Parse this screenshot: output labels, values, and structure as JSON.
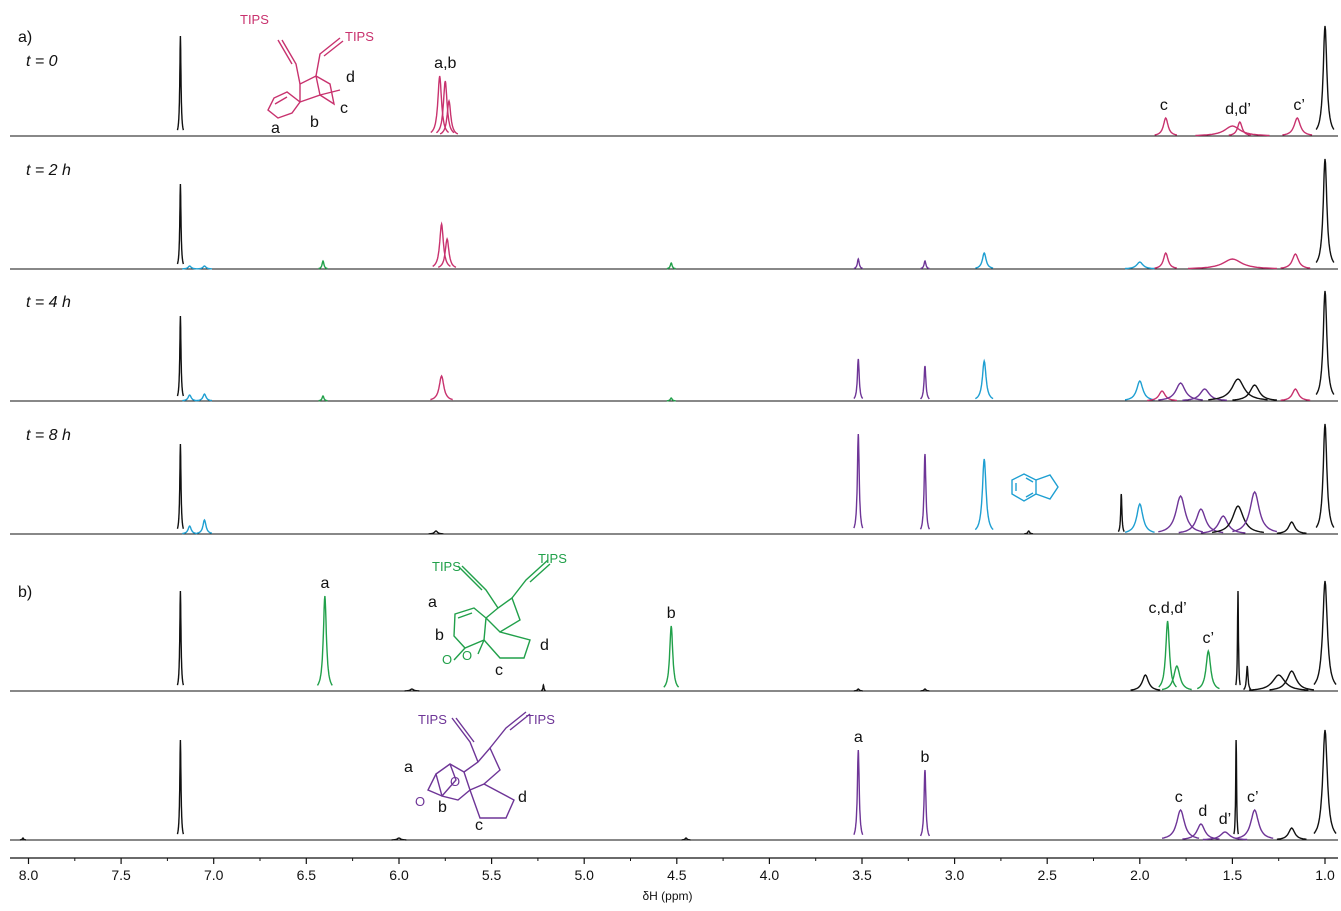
{
  "colors": {
    "black": "#111111",
    "magenta": "#c8326e",
    "cyan": "#1e9fd2",
    "green": "#21a04a",
    "purple": "#6e3597"
  },
  "chart_data": {
    "type": "line",
    "xlim": [
      8.1,
      0.93
    ],
    "xticks": [
      "8.0",
      "7.5",
      "7.0",
      "6.5",
      "6.0",
      "5.5",
      "5.0",
      "4.5",
      "4.0",
      "3.5",
      "3.0",
      "2.5",
      "2.0",
      "1.5",
      "1.0"
    ],
    "xlabel": "δH (ppm)",
    "panel_labels": [
      "a)",
      "b)"
    ],
    "traces": [
      {
        "label": "t = 0",
        "peaks": [
          {
            "ppm": 7.18,
            "h": 1.0,
            "w": 0.004,
            "c": "black"
          },
          {
            "ppm": 5.78,
            "h": 0.6,
            "w": 0.012,
            "c": "magenta"
          },
          {
            "ppm": 5.75,
            "h": 0.55,
            "w": 0.012,
            "c": "magenta"
          },
          {
            "ppm": 5.73,
            "h": 0.35,
            "w": 0.012,
            "c": "magenta"
          },
          {
            "ppm": 1.86,
            "h": 0.18,
            "w": 0.015,
            "c": "magenta"
          },
          {
            "ppm": 1.5,
            "h": 0.1,
            "w": 0.05,
            "c": "magenta"
          },
          {
            "ppm": 1.46,
            "h": 0.14,
            "w": 0.015,
            "c": "magenta"
          },
          {
            "ppm": 1.15,
            "h": 0.18,
            "w": 0.02,
            "c": "magenta"
          },
          {
            "ppm": 1.0,
            "h": 1.1,
            "w": 0.012,
            "c": "black"
          }
        ]
      },
      {
        "label": "t = 2 h",
        "peaks": [
          {
            "ppm": 7.18,
            "h": 0.85,
            "w": 0.004,
            "c": "black"
          },
          {
            "ppm": 7.13,
            "h": 0.03,
            "w": 0.01,
            "c": "cyan"
          },
          {
            "ppm": 7.05,
            "h": 0.03,
            "w": 0.01,
            "c": "cyan"
          },
          {
            "ppm": 6.41,
            "h": 0.08,
            "w": 0.006,
            "c": "green"
          },
          {
            "ppm": 5.77,
            "h": 0.45,
            "w": 0.012,
            "c": "magenta"
          },
          {
            "ppm": 5.74,
            "h": 0.3,
            "w": 0.012,
            "c": "magenta"
          },
          {
            "ppm": 4.53,
            "h": 0.06,
            "w": 0.006,
            "c": "green"
          },
          {
            "ppm": 3.52,
            "h": 0.1,
            "w": 0.006,
            "c": "purple"
          },
          {
            "ppm": 3.16,
            "h": 0.08,
            "w": 0.006,
            "c": "purple"
          },
          {
            "ppm": 2.84,
            "h": 0.16,
            "w": 0.012,
            "c": "cyan"
          },
          {
            "ppm": 2.0,
            "h": 0.07,
            "w": 0.02,
            "c": "cyan"
          },
          {
            "ppm": 1.86,
            "h": 0.16,
            "w": 0.015,
            "c": "magenta"
          },
          {
            "ppm": 1.5,
            "h": 0.1,
            "w": 0.06,
            "c": "magenta"
          },
          {
            "ppm": 1.16,
            "h": 0.15,
            "w": 0.02,
            "c": "magenta"
          },
          {
            "ppm": 1.0,
            "h": 1.1,
            "w": 0.012,
            "c": "black"
          }
        ]
      },
      {
        "label": "t = 4 h",
        "peaks": [
          {
            "ppm": 7.18,
            "h": 0.85,
            "w": 0.004,
            "c": "black"
          },
          {
            "ppm": 7.13,
            "h": 0.06,
            "w": 0.01,
            "c": "cyan"
          },
          {
            "ppm": 7.05,
            "h": 0.07,
            "w": 0.01,
            "c": "cyan"
          },
          {
            "ppm": 6.41,
            "h": 0.05,
            "w": 0.006,
            "c": "green"
          },
          {
            "ppm": 5.77,
            "h": 0.25,
            "w": 0.015,
            "c": "magenta"
          },
          {
            "ppm": 4.53,
            "h": 0.03,
            "w": 0.006,
            "c": "green"
          },
          {
            "ppm": 3.52,
            "h": 0.42,
            "w": 0.006,
            "c": "purple"
          },
          {
            "ppm": 3.16,
            "h": 0.35,
            "w": 0.006,
            "c": "purple"
          },
          {
            "ppm": 2.84,
            "h": 0.4,
            "w": 0.012,
            "c": "cyan"
          },
          {
            "ppm": 2.0,
            "h": 0.2,
            "w": 0.02,
            "c": "cyan"
          },
          {
            "ppm": 1.88,
            "h": 0.1,
            "w": 0.02,
            "c": "magenta"
          },
          {
            "ppm": 1.78,
            "h": 0.18,
            "w": 0.03,
            "c": "purple"
          },
          {
            "ppm": 1.65,
            "h": 0.12,
            "w": 0.03,
            "c": "purple"
          },
          {
            "ppm": 1.47,
            "h": 0.22,
            "w": 0.04,
            "c": "black"
          },
          {
            "ppm": 1.38,
            "h": 0.16,
            "w": 0.03,
            "c": "black"
          },
          {
            "ppm": 1.16,
            "h": 0.12,
            "w": 0.02,
            "c": "magenta"
          },
          {
            "ppm": 1.0,
            "h": 1.1,
            "w": 0.012,
            "c": "black"
          }
        ]
      },
      {
        "label": "t = 8 h",
        "peaks": [
          {
            "ppm": 7.18,
            "h": 0.9,
            "w": 0.004,
            "c": "black"
          },
          {
            "ppm": 7.13,
            "h": 0.08,
            "w": 0.01,
            "c": "cyan"
          },
          {
            "ppm": 7.05,
            "h": 0.14,
            "w": 0.01,
            "c": "cyan"
          },
          {
            "ppm": 5.8,
            "h": 0.03,
            "w": 0.01,
            "c": "black"
          },
          {
            "ppm": 3.52,
            "h": 1.0,
            "w": 0.006,
            "c": "purple"
          },
          {
            "ppm": 3.16,
            "h": 0.8,
            "w": 0.006,
            "c": "purple"
          },
          {
            "ppm": 2.84,
            "h": 0.75,
            "w": 0.012,
            "c": "cyan"
          },
          {
            "ppm": 2.6,
            "h": 0.03,
            "w": 0.006,
            "c": "black"
          },
          {
            "ppm": 2.1,
            "h": 0.4,
            "w": 0.004,
            "c": "black"
          },
          {
            "ppm": 2.0,
            "h": 0.3,
            "w": 0.02,
            "c": "cyan"
          },
          {
            "ppm": 1.78,
            "h": 0.38,
            "w": 0.03,
            "c": "purple"
          },
          {
            "ppm": 1.67,
            "h": 0.25,
            "w": 0.03,
            "c": "purple"
          },
          {
            "ppm": 1.55,
            "h": 0.18,
            "w": 0.03,
            "c": "purple"
          },
          {
            "ppm": 1.47,
            "h": 0.28,
            "w": 0.035,
            "c": "black"
          },
          {
            "ppm": 1.38,
            "h": 0.42,
            "w": 0.03,
            "c": "purple"
          },
          {
            "ppm": 1.18,
            "h": 0.12,
            "w": 0.02,
            "c": "black"
          },
          {
            "ppm": 1.0,
            "h": 1.1,
            "w": 0.012,
            "c": "black"
          }
        ]
      },
      {
        "label": "",
        "peaks": [
          {
            "ppm": 7.18,
            "h": 1.0,
            "w": 0.004,
            "c": "black"
          },
          {
            "ppm": 6.4,
            "h": 0.95,
            "w": 0.01,
            "c": "green"
          },
          {
            "ppm": 5.93,
            "h": 0.02,
            "w": 0.01,
            "c": "black"
          },
          {
            "ppm": 5.22,
            "h": 0.06,
            "w": 0.003,
            "c": "black"
          },
          {
            "ppm": 4.53,
            "h": 0.65,
            "w": 0.01,
            "c": "green"
          },
          {
            "ppm": 3.52,
            "h": 0.02,
            "w": 0.006,
            "c": "black"
          },
          {
            "ppm": 3.16,
            "h": 0.02,
            "w": 0.006,
            "c": "black"
          },
          {
            "ppm": 1.97,
            "h": 0.16,
            "w": 0.02,
            "c": "black"
          },
          {
            "ppm": 1.85,
            "h": 0.7,
            "w": 0.012,
            "c": "green"
          },
          {
            "ppm": 1.8,
            "h": 0.25,
            "w": 0.02,
            "c": "green"
          },
          {
            "ppm": 1.63,
            "h": 0.4,
            "w": 0.015,
            "c": "green"
          },
          {
            "ppm": 1.47,
            "h": 1.0,
            "w": 0.003,
            "c": "black"
          },
          {
            "ppm": 1.42,
            "h": 0.25,
            "w": 0.005,
            "c": "black"
          },
          {
            "ppm": 1.25,
            "h": 0.16,
            "w": 0.04,
            "c": "black"
          },
          {
            "ppm": 1.18,
            "h": 0.2,
            "w": 0.03,
            "c": "black"
          },
          {
            "ppm": 1.0,
            "h": 1.1,
            "w": 0.015,
            "c": "black"
          }
        ]
      },
      {
        "label": "",
        "peaks": [
          {
            "ppm": 8.03,
            "h": 0.02,
            "w": 0.004,
            "c": "black"
          },
          {
            "ppm": 7.18,
            "h": 1.0,
            "w": 0.004,
            "c": "black"
          },
          {
            "ppm": 6.0,
            "h": 0.02,
            "w": 0.01,
            "c": "black"
          },
          {
            "ppm": 4.45,
            "h": 0.02,
            "w": 0.006,
            "c": "black"
          },
          {
            "ppm": 3.52,
            "h": 0.9,
            "w": 0.006,
            "c": "purple"
          },
          {
            "ppm": 3.16,
            "h": 0.7,
            "w": 0.006,
            "c": "purple"
          },
          {
            "ppm": 1.78,
            "h": 0.3,
            "w": 0.025,
            "c": "purple"
          },
          {
            "ppm": 1.67,
            "h": 0.16,
            "w": 0.025,
            "c": "purple"
          },
          {
            "ppm": 1.54,
            "h": 0.08,
            "w": 0.03,
            "c": "purple"
          },
          {
            "ppm": 1.48,
            "h": 1.0,
            "w": 0.003,
            "c": "black"
          },
          {
            "ppm": 1.38,
            "h": 0.3,
            "w": 0.025,
            "c": "purple"
          },
          {
            "ppm": 1.18,
            "h": 0.12,
            "w": 0.02,
            "c": "black"
          },
          {
            "ppm": 1.0,
            "h": 1.1,
            "w": 0.015,
            "c": "black"
          }
        ]
      }
    ],
    "annotations": [
      {
        "text": "a,b",
        "ppm": 5.75,
        "trace": 0,
        "c": "black"
      },
      {
        "text": "c",
        "ppm": 1.87,
        "trace": 0,
        "c": "black"
      },
      {
        "text": "d,d’",
        "ppm": 1.47,
        "trace": 0,
        "c": "black"
      },
      {
        "text": "c’",
        "ppm": 1.14,
        "trace": 0,
        "c": "black"
      },
      {
        "text": "a",
        "ppm": 6.4,
        "trace": 4,
        "c": "black"
      },
      {
        "text": "b",
        "ppm": 4.53,
        "trace": 4,
        "c": "black"
      },
      {
        "text": "c,d,d’",
        "ppm": 1.85,
        "trace": 4,
        "c": "black"
      },
      {
        "text": "c’",
        "ppm": 1.63,
        "trace": 4,
        "c": "black"
      },
      {
        "text": "a",
        "ppm": 3.52,
        "trace": 5,
        "c": "black"
      },
      {
        "text": "b",
        "ppm": 3.16,
        "trace": 5,
        "c": "black"
      },
      {
        "text": "c",
        "ppm": 1.79,
        "trace": 5,
        "c": "black"
      },
      {
        "text": "d",
        "ppm": 1.66,
        "trace": 5,
        "c": "black"
      },
      {
        "text": "d’",
        "ppm": 1.54,
        "trace": 5,
        "c": "black"
      },
      {
        "text": "c’",
        "ppm": 1.39,
        "trace": 5,
        "c": "black"
      }
    ],
    "structure_labels": {
      "tips": "TIPS",
      "oxygen": "O",
      "s1": [
        "a",
        "b",
        "c",
        "d"
      ],
      "s2": [
        "a",
        "b",
        "c",
        "d"
      ],
      "s3": [
        "a",
        "b",
        "c",
        "d"
      ]
    }
  }
}
